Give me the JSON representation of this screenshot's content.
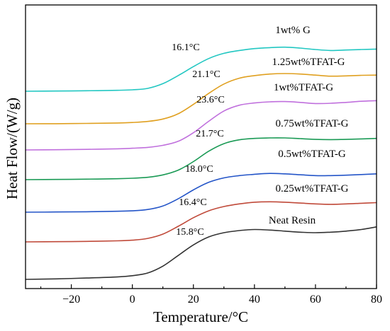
{
  "chart_data": {
    "type": "line",
    "xlabel": "Temperature/°C",
    "ylabel": "Heat Flow/(W/g)",
    "xlim": [
      -35,
      80
    ],
    "xticks": [
      -20,
      0,
      20,
      40,
      60,
      80
    ],
    "xtick_labels": [
      "−20",
      "0",
      "20",
      "40",
      "60",
      "80"
    ],
    "y_ticks_shown": false,
    "grid": false,
    "series": [
      {
        "name": "1wt% G",
        "color": "#22c7c2",
        "tg_label": "16.1°C",
        "points": [
          [
            -35,
            0.0
          ],
          [
            -25,
            0.004
          ],
          [
            -15,
            0.01
          ],
          [
            -5,
            0.02
          ],
          [
            0,
            0.03
          ],
          [
            5,
            0.06
          ],
          [
            10,
            0.16
          ],
          [
            15,
            0.33
          ],
          [
            20,
            0.52
          ],
          [
            25,
            0.69
          ],
          [
            30,
            0.8
          ],
          [
            35,
            0.86
          ],
          [
            40,
            0.9
          ],
          [
            45,
            0.92
          ],
          [
            50,
            0.93
          ],
          [
            55,
            0.91
          ],
          [
            60,
            0.88
          ],
          [
            65,
            0.86
          ],
          [
            70,
            0.87
          ],
          [
            75,
            0.88
          ],
          [
            80,
            0.89
          ]
        ]
      },
      {
        "name": "1.25wt%TFAT-G",
        "color": "#e0a020",
        "tg_label": "21.1°C",
        "points": [
          [
            -35,
            0.0
          ],
          [
            -25,
            0.002
          ],
          [
            -15,
            0.007
          ],
          [
            -5,
            0.015
          ],
          [
            0,
            0.025
          ],
          [
            5,
            0.045
          ],
          [
            10,
            0.09
          ],
          [
            15,
            0.19
          ],
          [
            20,
            0.37
          ],
          [
            25,
            0.58
          ],
          [
            30,
            0.76
          ],
          [
            35,
            0.87
          ],
          [
            40,
            0.92
          ],
          [
            45,
            0.95
          ],
          [
            50,
            0.96
          ],
          [
            55,
            0.95
          ],
          [
            60,
            0.93
          ],
          [
            65,
            0.91
          ],
          [
            70,
            0.915
          ],
          [
            75,
            0.925
          ],
          [
            80,
            0.93
          ]
        ]
      },
      {
        "name": "1wt%TFAT-G",
        "color": "#c070dd",
        "tg_label": "23.6°C",
        "points": [
          [
            -35,
            0.0
          ],
          [
            -25,
            0.004
          ],
          [
            -15,
            0.01
          ],
          [
            -5,
            0.02
          ],
          [
            0,
            0.03
          ],
          [
            5,
            0.045
          ],
          [
            10,
            0.08
          ],
          [
            15,
            0.15
          ],
          [
            20,
            0.3
          ],
          [
            25,
            0.5
          ],
          [
            30,
            0.68
          ],
          [
            35,
            0.78
          ],
          [
            40,
            0.82
          ],
          [
            45,
            0.84
          ],
          [
            50,
            0.845
          ],
          [
            55,
            0.83
          ],
          [
            60,
            0.81
          ],
          [
            65,
            0.815
          ],
          [
            70,
            0.83
          ],
          [
            75,
            0.85
          ],
          [
            80,
            0.86
          ]
        ]
      },
      {
        "name": "0.75wt%TFAT-G",
        "color": "#1a9a55",
        "tg_label": "21.7°C",
        "points": [
          [
            -35,
            0.0
          ],
          [
            -25,
            0.004
          ],
          [
            -15,
            0.01
          ],
          [
            -5,
            0.02
          ],
          [
            0,
            0.03
          ],
          [
            5,
            0.05
          ],
          [
            10,
            0.1
          ],
          [
            15,
            0.2
          ],
          [
            20,
            0.38
          ],
          [
            25,
            0.6
          ],
          [
            30,
            0.76
          ],
          [
            35,
            0.84
          ],
          [
            40,
            0.87
          ],
          [
            45,
            0.88
          ],
          [
            50,
            0.88
          ],
          [
            55,
            0.865
          ],
          [
            60,
            0.85
          ],
          [
            65,
            0.845
          ],
          [
            70,
            0.85
          ],
          [
            75,
            0.86
          ],
          [
            80,
            0.87
          ]
        ]
      },
      {
        "name": "0.5wt%TFAT-G",
        "color": "#2455c8",
        "tg_label": "18.0°C",
        "points": [
          [
            -35,
            0.0
          ],
          [
            -25,
            0.004
          ],
          [
            -15,
            0.01
          ],
          [
            -5,
            0.02
          ],
          [
            0,
            0.03
          ],
          [
            5,
            0.06
          ],
          [
            10,
            0.14
          ],
          [
            15,
            0.3
          ],
          [
            20,
            0.5
          ],
          [
            25,
            0.67
          ],
          [
            30,
            0.77
          ],
          [
            35,
            0.82
          ],
          [
            40,
            0.85
          ],
          [
            45,
            0.87
          ],
          [
            50,
            0.86
          ],
          [
            55,
            0.84
          ],
          [
            60,
            0.82
          ],
          [
            65,
            0.82
          ],
          [
            70,
            0.83
          ],
          [
            75,
            0.845
          ],
          [
            80,
            0.86
          ]
        ]
      },
      {
        "name": "0.25wt%TFAT-G",
        "color": "#c04a3a",
        "tg_label": "16.4°C",
        "points": [
          [
            -35,
            0.0
          ],
          [
            -25,
            0.005
          ],
          [
            -15,
            0.012
          ],
          [
            -5,
            0.025
          ],
          [
            0,
            0.04
          ],
          [
            5,
            0.08
          ],
          [
            10,
            0.18
          ],
          [
            15,
            0.36
          ],
          [
            20,
            0.56
          ],
          [
            25,
            0.72
          ],
          [
            30,
            0.82
          ],
          [
            35,
            0.88
          ],
          [
            40,
            0.92
          ],
          [
            45,
            0.93
          ],
          [
            50,
            0.92
          ],
          [
            55,
            0.9
          ],
          [
            60,
            0.88
          ],
          [
            65,
            0.87
          ],
          [
            70,
            0.88
          ],
          [
            75,
            0.895
          ],
          [
            80,
            0.91
          ]
        ]
      },
      {
        "name": "Neat Resin",
        "color": "#333333",
        "tg_label": "15.8°C",
        "points": [
          [
            -35,
            0.0
          ],
          [
            -25,
            0.01
          ],
          [
            -15,
            0.025
          ],
          [
            -5,
            0.045
          ],
          [
            0,
            0.07
          ],
          [
            5,
            0.12
          ],
          [
            10,
            0.25
          ],
          [
            15,
            0.45
          ],
          [
            20,
            0.65
          ],
          [
            25,
            0.8
          ],
          [
            30,
            0.88
          ],
          [
            35,
            0.92
          ],
          [
            40,
            0.94
          ],
          [
            45,
            0.93
          ],
          [
            50,
            0.91
          ],
          [
            55,
            0.89
          ],
          [
            60,
            0.88
          ],
          [
            65,
            0.89
          ],
          [
            70,
            0.91
          ],
          [
            75,
            0.94
          ],
          [
            80,
            0.99
          ]
        ]
      }
    ]
  }
}
